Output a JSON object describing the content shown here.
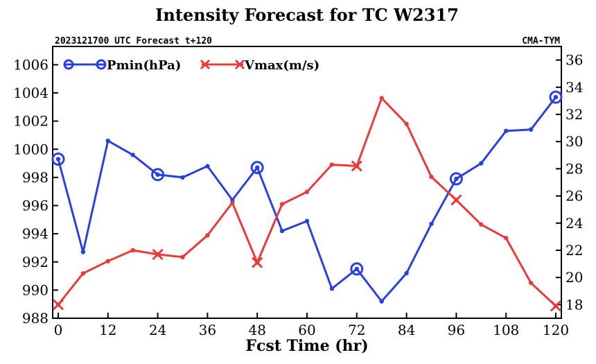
{
  "chart_data": {
    "type": "line",
    "title": "Intensity Forecast for TC W2317",
    "subtitle_left": "2023121700 UTC Forecast t+120",
    "subtitle_right": "CMA-TYM",
    "xlabel": "Fcst Time (hr)",
    "x": [
      0,
      6,
      12,
      18,
      24,
      30,
      36,
      42,
      48,
      54,
      60,
      66,
      72,
      78,
      84,
      90,
      96,
      102,
      108,
      114,
      120
    ],
    "xlim": [
      0,
      120
    ],
    "xticks": [
      0,
      12,
      24,
      36,
      48,
      60,
      72,
      84,
      96,
      108,
      120
    ],
    "y_left": {
      "ylim": [
        988,
        1007.3
      ],
      "ticks": [
        988,
        990,
        992,
        994,
        996,
        998,
        1000,
        1002,
        1004,
        1006
      ]
    },
    "y_right": {
      "ylim": [
        17,
        37
      ],
      "ticks": [
        18,
        20,
        22,
        24,
        26,
        28,
        30,
        32,
        34,
        36
      ]
    },
    "series": [
      {
        "name": "Pmin(hPa)",
        "axis": "left",
        "color": "#2a3fe0",
        "marker": "circle",
        "marker_at": [
          0,
          24,
          48,
          72,
          96,
          120
        ],
        "values": [
          999.3,
          992.7,
          1000.6,
          999.6,
          998.2,
          998.0,
          998.8,
          996.4,
          998.7,
          994.2,
          994.9,
          990.1,
          991.5,
          989.2,
          991.2,
          994.7,
          997.9,
          999.0,
          1001.3,
          1001.4,
          1003.7
        ]
      },
      {
        "name": "Vmax(m/s)",
        "axis": "right",
        "color": "#e83a3a",
        "marker": "cross",
        "marker_at": [
          0,
          24,
          48,
          72,
          96,
          120
        ],
        "values": [
          18.0,
          20.3,
          21.2,
          22.0,
          21.7,
          21.5,
          23.1,
          25.5,
          21.1,
          25.4,
          26.3,
          28.3,
          28.2,
          33.2,
          31.3,
          27.4,
          25.7,
          23.9,
          22.9,
          19.6,
          17.9
        ]
      }
    ],
    "legend": "top-left",
    "grid": false
  }
}
